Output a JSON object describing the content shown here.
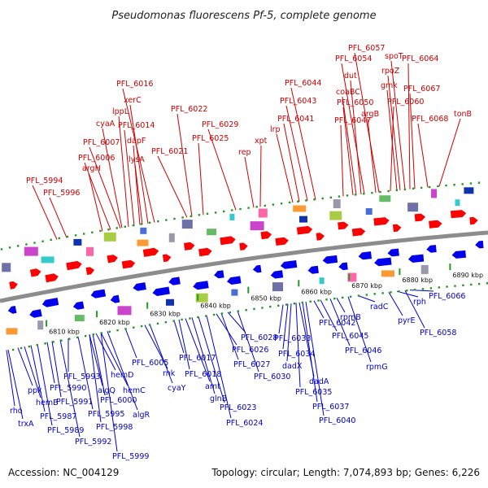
{
  "title": "Pseudomonas fluorescens Pf-5, complete genome",
  "footer": {
    "accession": "Accession: NC_004129",
    "topology": "Topology: circular; Length: 7,074,893 bp; Genes: 6,226"
  },
  "colors": {
    "forward_label": "#cc0000",
    "reverse_label": "#0000cc",
    "forward_gene": "#ff0000",
    "reverse_gene": "#0000ee",
    "backbone": "#8c8c8c",
    "tick": "#229922"
  },
  "scale": {
    "ticks": [
      "6810 kbp",
      "6820 kbp",
      "6830 kbp",
      "6840 kbp",
      "6850 kbp",
      "6860 kbp",
      "6870 kbp",
      "6880 kbp",
      "6890 kbp"
    ]
  },
  "forward_labels": [
    "PFL_5994",
    "PFL_5996",
    "argH",
    "PFL_6006",
    "PFL_6007",
    "cyaA",
    "lppL",
    "PFL_6014",
    "dapF",
    "lysA",
    "xerC",
    "PFL_6016",
    "PFL_6021",
    "PFL_6022",
    "PFL_6025",
    "PFL_6029",
    "rep",
    "xpt",
    "lrp",
    "PFL_6041",
    "PFL_6043",
    "PFL_6044",
    "PFL_6047",
    "PFL_6050",
    "coaBC",
    "dut",
    "PFL_6054",
    "argB",
    "PFL_6057",
    "PFL_6060",
    "gmk",
    "rpoZ",
    "spoT",
    "PFL_6064",
    "PFL_6067",
    "PFL_6068",
    "tonB"
  ],
  "reverse_labels": [
    "rho",
    "trxA",
    "ppk",
    "hemB",
    "PFL_5987",
    "PFL_5989",
    "PFL_5990",
    "PFL_5991",
    "PFL_5992",
    "PFL_5993",
    "PFL_5995",
    "PFL_5998",
    "PFL_5999",
    "algQ",
    "PFL_6000",
    "hemD",
    "hemC",
    "algR",
    "PFL_6005",
    "rnk",
    "cyaY",
    "PFL_6017",
    "PFL_6018",
    "amt",
    "glnB",
    "PFL_6023",
    "PFL_6024",
    "PFL_6026",
    "PFL_6027",
    "PFL_6028",
    "PFL_6030",
    "PFL_6033",
    "PFL_6034",
    "dadX",
    "PFL_6035",
    "dadA",
    "PFL_6037",
    "PFL_6040",
    "PFL_6042",
    "PFL_6045",
    "PFL_6046",
    "rpmB",
    "rpmG",
    "radC",
    "pyrE",
    "rph",
    "PFL_6058",
    "PFL_6066"
  ]
}
